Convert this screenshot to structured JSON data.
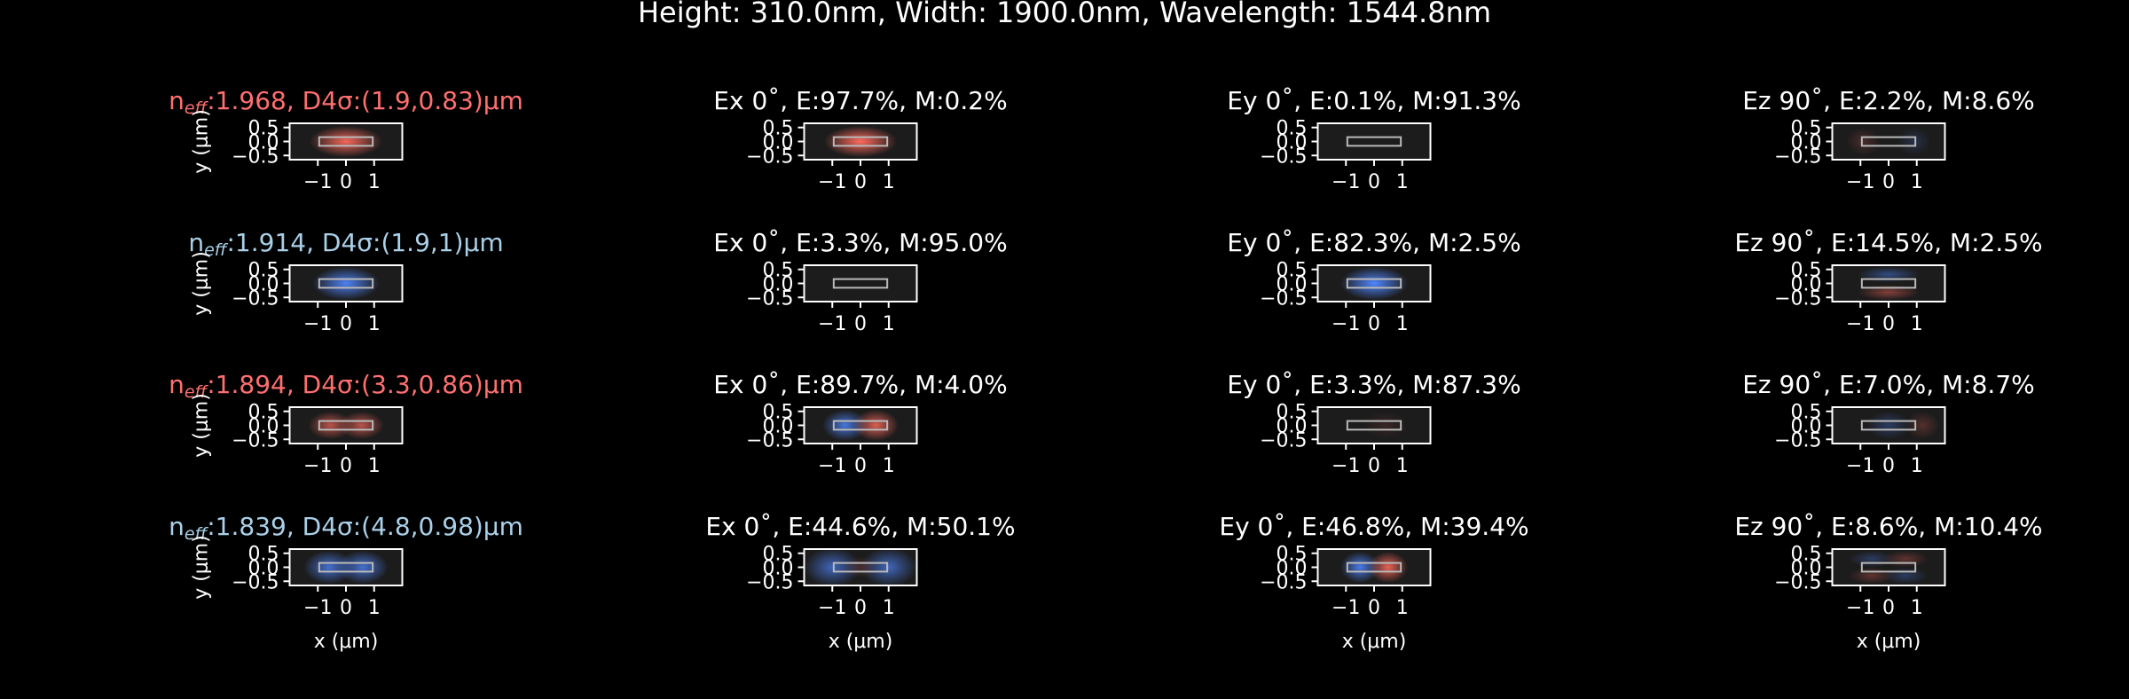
{
  "chart_data": {
    "type": "heatmap",
    "title": "Height: 310.0nm, Width: 1900.0nm, Wavelength: 1544.8nm",
    "xlabel": "x (μm)",
    "ylabel": "y (μm)",
    "x_ticks": [
      "−1",
      "0",
      "1"
    ],
    "y_ticks": [
      "0.5",
      "0.0",
      "−0.5"
    ],
    "xlim": [
      -2,
      2
    ],
    "ylim": [
      -0.65,
      0.65
    ],
    "core": {
      "width_um": 1.9,
      "height_um": 0.31
    },
    "colors": {
      "positive": "#ff6b5e",
      "negative": "#4f86ff",
      "title_red": "#ff6f6f",
      "title_blue": "#a9d0e8",
      "panel_bg": "#1c1c1c",
      "core_outline": "#b9b9b9"
    },
    "modes": [
      {
        "title_parts": [
          "n",
          "eff",
          ":1.968, D4σ:(1.9,0.83)μm"
        ],
        "title_color": "red",
        "panels": [
          {
            "title": "Ex 0˚, E:97.7%, M:0.2%",
            "lobes": [
              {
                "x": 0,
                "y": 0,
                "sx": 0.65,
                "sy": 0.28,
                "a": 1.0
              }
            ]
          },
          {
            "title": "Ey 0˚, E:0.1%, M:91.3%",
            "lobes": []
          },
          {
            "title": "Ez 90˚, E:2.2%, M:8.6%",
            "lobes": [
              {
                "x": -0.9,
                "y": 0,
                "sx": 0.3,
                "sy": 0.25,
                "a": 0.2
              },
              {
                "x": 0.9,
                "y": 0,
                "sx": 0.3,
                "sy": 0.25,
                "a": -0.2
              }
            ]
          }
        ]
      },
      {
        "title_parts": [
          "n",
          "eff",
          ":1.914, D4σ:(1.9,1)μm"
        ],
        "title_color": "blue",
        "panels": [
          {
            "title": "Ex 0˚, E:3.3%, M:95.0%",
            "lobes": []
          },
          {
            "title": "Ey 0˚, E:82.3%, M:2.5%",
            "lobes": [
              {
                "x": 0,
                "y": 0,
                "sx": 0.6,
                "sy": 0.3,
                "a": -1.0
              }
            ]
          },
          {
            "title": "Ez 90˚, E:14.5%, M:2.5%",
            "lobes": [
              {
                "x": 0,
                "y": 0.32,
                "sx": 0.55,
                "sy": 0.14,
                "a": -0.45
              },
              {
                "x": 0,
                "y": -0.32,
                "sx": 0.55,
                "sy": 0.14,
                "a": 0.45
              }
            ]
          }
        ]
      },
      {
        "title_parts": [
          "n",
          "eff",
          ":1.894, D4σ:(3.3,0.86)μm"
        ],
        "title_color": "red",
        "panels": [
          {
            "title": "Ex 0˚, E:89.7%, M:4.0%",
            "lobes": [
              {
                "x": -0.55,
                "y": 0,
                "sx": 0.4,
                "sy": 0.28,
                "a": -0.85
              },
              {
                "x": 0.55,
                "y": 0,
                "sx": 0.4,
                "sy": 0.28,
                "a": 0.85
              }
            ]
          },
          {
            "title": "Ey 0˚, E:3.3%, M:87.3%",
            "lobes": [
              {
                "x": 0.4,
                "y": 0,
                "sx": 0.4,
                "sy": 0.25,
                "a": 0.12
              }
            ]
          },
          {
            "title": "Ez 90˚, E:7.0%, M:8.7%",
            "lobes": [
              {
                "x": 0,
                "y": 0,
                "sx": 0.4,
                "sy": 0.25,
                "a": -0.3
              },
              {
                "x": 1.2,
                "y": 0,
                "sx": 0.3,
                "sy": 0.25,
                "a": 0.25
              }
            ]
          }
        ]
      },
      {
        "title_parts": [
          "n",
          "eff",
          ":1.839, D4σ:(4.8,0.98)μm"
        ],
        "title_color": "blue",
        "panels": [
          {
            "title": "Ex 0˚, E:44.6%, M:50.1%",
            "lobes": [
              {
                "x": -1.0,
                "y": 0,
                "sx": 0.5,
                "sy": 0.35,
                "a": -0.7
              },
              {
                "x": 1.0,
                "y": 0,
                "sx": 0.5,
                "sy": 0.35,
                "a": -0.7
              },
              {
                "x": 0,
                "y": 0,
                "sx": 0.3,
                "sy": 0.2,
                "a": 0.2
              }
            ]
          },
          {
            "title": "Ey 0˚, E:46.8%, M:39.4%",
            "lobes": [
              {
                "x": -0.5,
                "y": 0,
                "sx": 0.35,
                "sy": 0.28,
                "a": -0.9
              },
              {
                "x": 0.5,
                "y": 0,
                "sx": 0.35,
                "sy": 0.28,
                "a": 0.9
              }
            ]
          },
          {
            "title": "Ez 90˚, E:8.6%, M:10.4%",
            "lobes": [
              {
                "x": -0.6,
                "y": 0.3,
                "sx": 0.4,
                "sy": 0.15,
                "a": -0.3
              },
              {
                "x": 0.6,
                "y": 0.3,
                "sx": 0.4,
                "sy": 0.15,
                "a": 0.3
              },
              {
                "x": -0.6,
                "y": -0.3,
                "sx": 0.4,
                "sy": 0.15,
                "a": 0.3
              },
              {
                "x": 0.6,
                "y": -0.3,
                "sx": 0.4,
                "sy": 0.15,
                "a": -0.3
              }
            ]
          }
        ]
      }
    ]
  }
}
